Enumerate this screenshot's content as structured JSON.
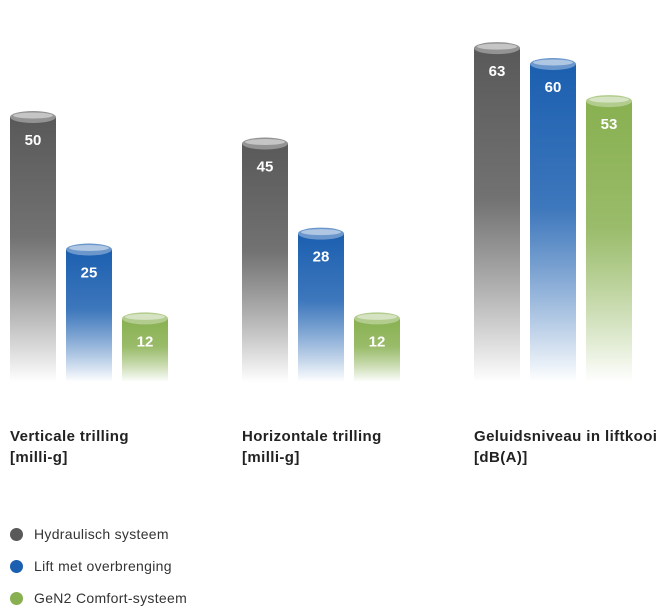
{
  "chart_data": {
    "type": "bar",
    "categories": [
      {
        "line1": "Verticale trilling",
        "line2": "[milli-g]"
      },
      {
        "line1": "Horizontale trilling",
        "line2": "[milli-g]"
      },
      {
        "line1": "Geluidsniveau in liftkooi",
        "line2": "[dB(A)]"
      }
    ],
    "series": [
      {
        "name": "Hydraulisch systeem",
        "color": "#595959",
        "values": [
          50,
          45,
          63
        ]
      },
      {
        "name": "Lift met overbrenging",
        "color": "#1b5fb0",
        "values": [
          25,
          28,
          60
        ]
      },
      {
        "name": "GeN2 Comfort-systeem",
        "color": "#88b050",
        "values": [
          12,
          12,
          53
        ]
      }
    ]
  }
}
